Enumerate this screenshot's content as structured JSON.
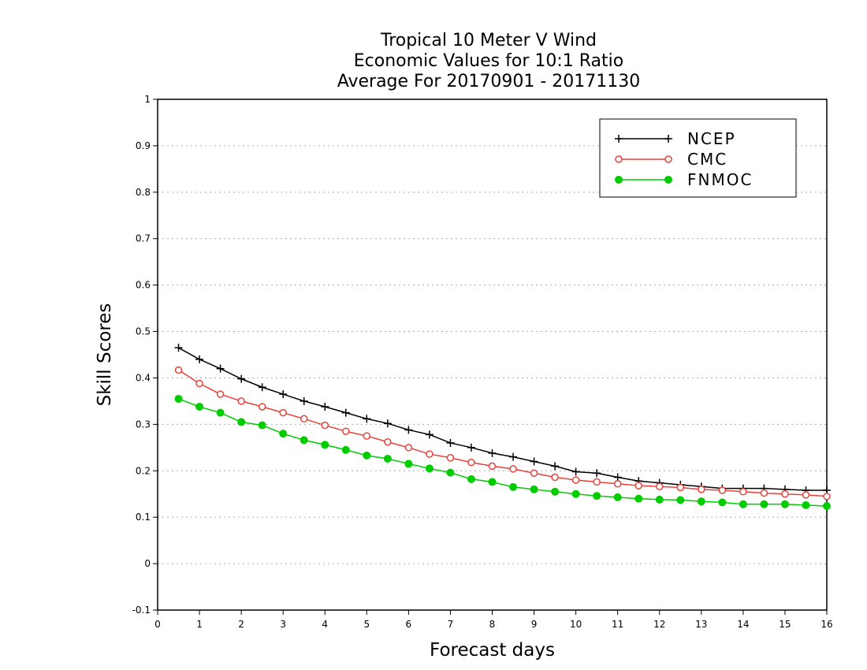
{
  "chart_data": {
    "type": "line",
    "title_lines": [
      "Tropical 10 Meter V Wind",
      "Economic Values for 10:1 Ratio",
      "Average For 20170901 - 20171130"
    ],
    "xlabel": "Forecast days",
    "ylabel": "Skill Scores",
    "xlim": [
      0,
      16
    ],
    "ylim": [
      -0.1,
      1
    ],
    "xticks": [
      "0",
      "1",
      "2",
      "3",
      "4",
      "5",
      "6",
      "7",
      "8",
      "9",
      "10",
      "11",
      "12",
      "13",
      "14",
      "15",
      "16"
    ],
    "yticks": [
      "-0.1",
      "0",
      "0.1",
      "0.2",
      "0.3",
      "0.4",
      "0.5",
      "0.6",
      "0.7",
      "0.8",
      "0.9",
      "1"
    ],
    "grid": "horizontal dotted",
    "legend_position": "top-right",
    "x": [
      0.5,
      1,
      1.5,
      2,
      2.5,
      3,
      3.5,
      4,
      4.5,
      5,
      5.5,
      6,
      6.5,
      7,
      7.5,
      8,
      8.5,
      9,
      9.5,
      10,
      10.5,
      11,
      11.5,
      12,
      12.5,
      13,
      13.5,
      14,
      14.5,
      15,
      15.5,
      16
    ],
    "series": [
      {
        "name": "NCEP",
        "color": "#000000",
        "marker": "plus",
        "values": [
          0.465,
          0.44,
          0.42,
          0.398,
          0.38,
          0.365,
          0.35,
          0.338,
          0.325,
          0.312,
          0.302,
          0.288,
          0.278,
          0.26,
          0.25,
          0.238,
          0.23,
          0.22,
          0.21,
          0.198,
          0.195,
          0.186,
          0.178,
          0.174,
          0.17,
          0.166,
          0.162,
          0.162,
          0.162,
          0.16,
          0.158,
          0.158
        ]
      },
      {
        "name": "CMC",
        "color": "#e8413c",
        "marker": "open-circle",
        "values": [
          0.417,
          0.388,
          0.365,
          0.35,
          0.338,
          0.325,
          0.312,
          0.298,
          0.285,
          0.275,
          0.262,
          0.25,
          0.236,
          0.228,
          0.218,
          0.21,
          0.204,
          0.195,
          0.186,
          0.18,
          0.176,
          0.172,
          0.168,
          0.166,
          0.164,
          0.16,
          0.158,
          0.155,
          0.152,
          0.15,
          0.148,
          0.145
        ]
      },
      {
        "name": "FNMOC",
        "color": "#00cc00",
        "marker": "filled-circle",
        "values": [
          0.355,
          0.338,
          0.325,
          0.305,
          0.298,
          0.28,
          0.266,
          0.256,
          0.245,
          0.233,
          0.226,
          0.215,
          0.205,
          0.196,
          0.182,
          0.176,
          0.165,
          0.16,
          0.155,
          0.15,
          0.146,
          0.143,
          0.14,
          0.138,
          0.137,
          0.134,
          0.132,
          0.128,
          0.128,
          0.128,
          0.126,
          0.124
        ]
      }
    ]
  }
}
